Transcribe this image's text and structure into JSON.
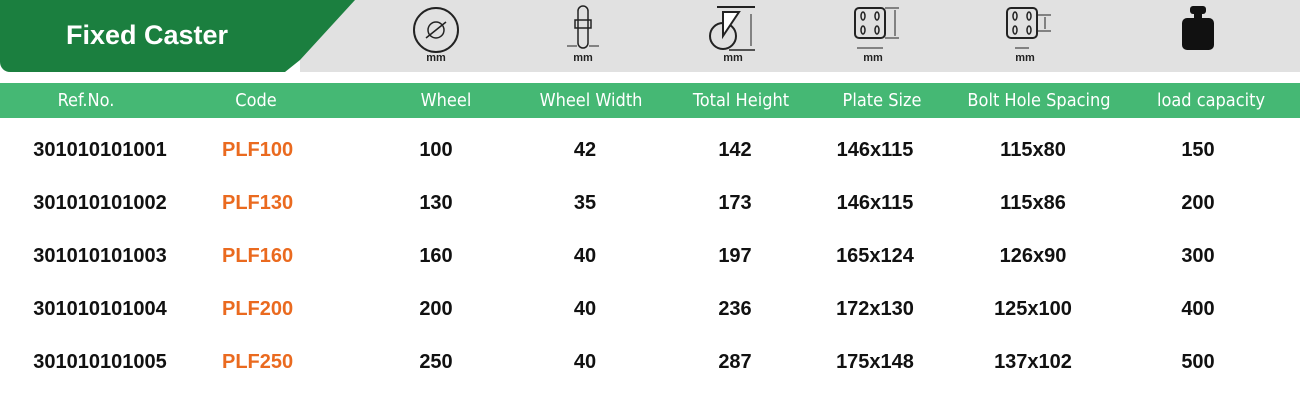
{
  "title": "Fixed Caster",
  "icons": [
    {
      "name": "wheel-diameter-icon",
      "unit": "mm"
    },
    {
      "name": "wheel-width-icon",
      "unit": "mm"
    },
    {
      "name": "total-height-icon",
      "unit": "mm"
    },
    {
      "name": "plate-size-icon",
      "unit": "mm"
    },
    {
      "name": "bolt-hole-spacing-icon",
      "unit": "mm"
    },
    {
      "name": "weight-icon",
      "unit": ""
    }
  ],
  "headers": [
    "Ref.No.",
    "Code",
    "Wheel",
    "Wheel Width",
    "Total Height",
    "Plate Size",
    "Bolt Hole Spacing",
    "load capacity"
  ],
  "rows": [
    [
      "301010101001",
      "PLF100",
      "100",
      "42",
      "142",
      "146x115",
      "115x80",
      "150"
    ],
    [
      "301010101002",
      "PLF130",
      "130",
      "35",
      "173",
      "146x115",
      "115x86",
      "200"
    ],
    [
      "301010101003",
      "PLF160",
      "160",
      "40",
      "197",
      "165x124",
      "126x90",
      "300"
    ],
    [
      "301010101004",
      "PLF200",
      "200",
      "40",
      "236",
      "172x130",
      "125x100",
      "400"
    ],
    [
      "301010101005",
      "PLF250",
      "250",
      "40",
      "287",
      "175x148",
      "137x102",
      "500"
    ]
  ],
  "colors": {
    "title_green": "#1b7f3f",
    "header_green": "#45b874",
    "code_orange": "#ea6a1f"
  }
}
